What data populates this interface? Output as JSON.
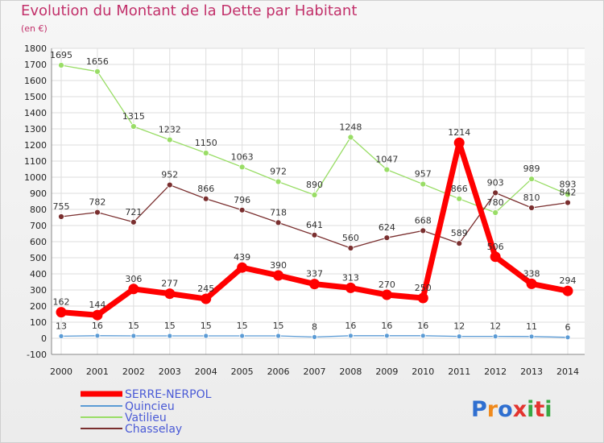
{
  "chart_data": {
    "type": "line",
    "title": "Evolution du Montant de la Dette par Habitant",
    "subtitle": "(en €)",
    "x": [
      "2000",
      "2001",
      "2002",
      "2003",
      "2004",
      "2005",
      "2006",
      "2007",
      "2008",
      "2009",
      "2010",
      "2011",
      "2012",
      "2013",
      "2014"
    ],
    "ylim": [
      -100,
      1800
    ],
    "yticks": [
      -100,
      0,
      100,
      200,
      300,
      400,
      500,
      600,
      700,
      800,
      900,
      1000,
      1100,
      1200,
      1300,
      1400,
      1500,
      1600,
      1700,
      1800
    ],
    "grid": true,
    "legend_position": "bottom-left",
    "series": [
      {
        "name": "SERRE-NERPOL",
        "color": "#ff0000",
        "values": [
          162,
          144,
          306,
          277,
          245,
          439,
          390,
          337,
          313,
          270,
          250,
          1214,
          506,
          338,
          294
        ]
      },
      {
        "name": "Quincieu",
        "color": "#5b9bd5",
        "values": [
          13,
          16,
          15,
          15,
          15,
          15,
          15,
          8,
          16,
          16,
          16,
          12,
          12,
          11,
          6
        ]
      },
      {
        "name": "Vatilieu",
        "color": "#99dd66",
        "values": [
          1695,
          1656,
          1315,
          1232,
          1150,
          1063,
          972,
          890,
          1248,
          1047,
          957,
          866,
          780,
          989,
          893
        ]
      },
      {
        "name": "Chasselay",
        "color": "#7a2f2f",
        "values": [
          755,
          782,
          721,
          952,
          866,
          796,
          718,
          641,
          560,
          624,
          668,
          589,
          903,
          810,
          842
        ]
      }
    ]
  },
  "branding": {
    "logo_text": "Proxiti",
    "logo_colors": [
      "#2f6fd0",
      "#f08a1d",
      "#2f6fd0",
      "#e3342f",
      "#39a844",
      "#e3342f",
      "#39a844"
    ]
  }
}
